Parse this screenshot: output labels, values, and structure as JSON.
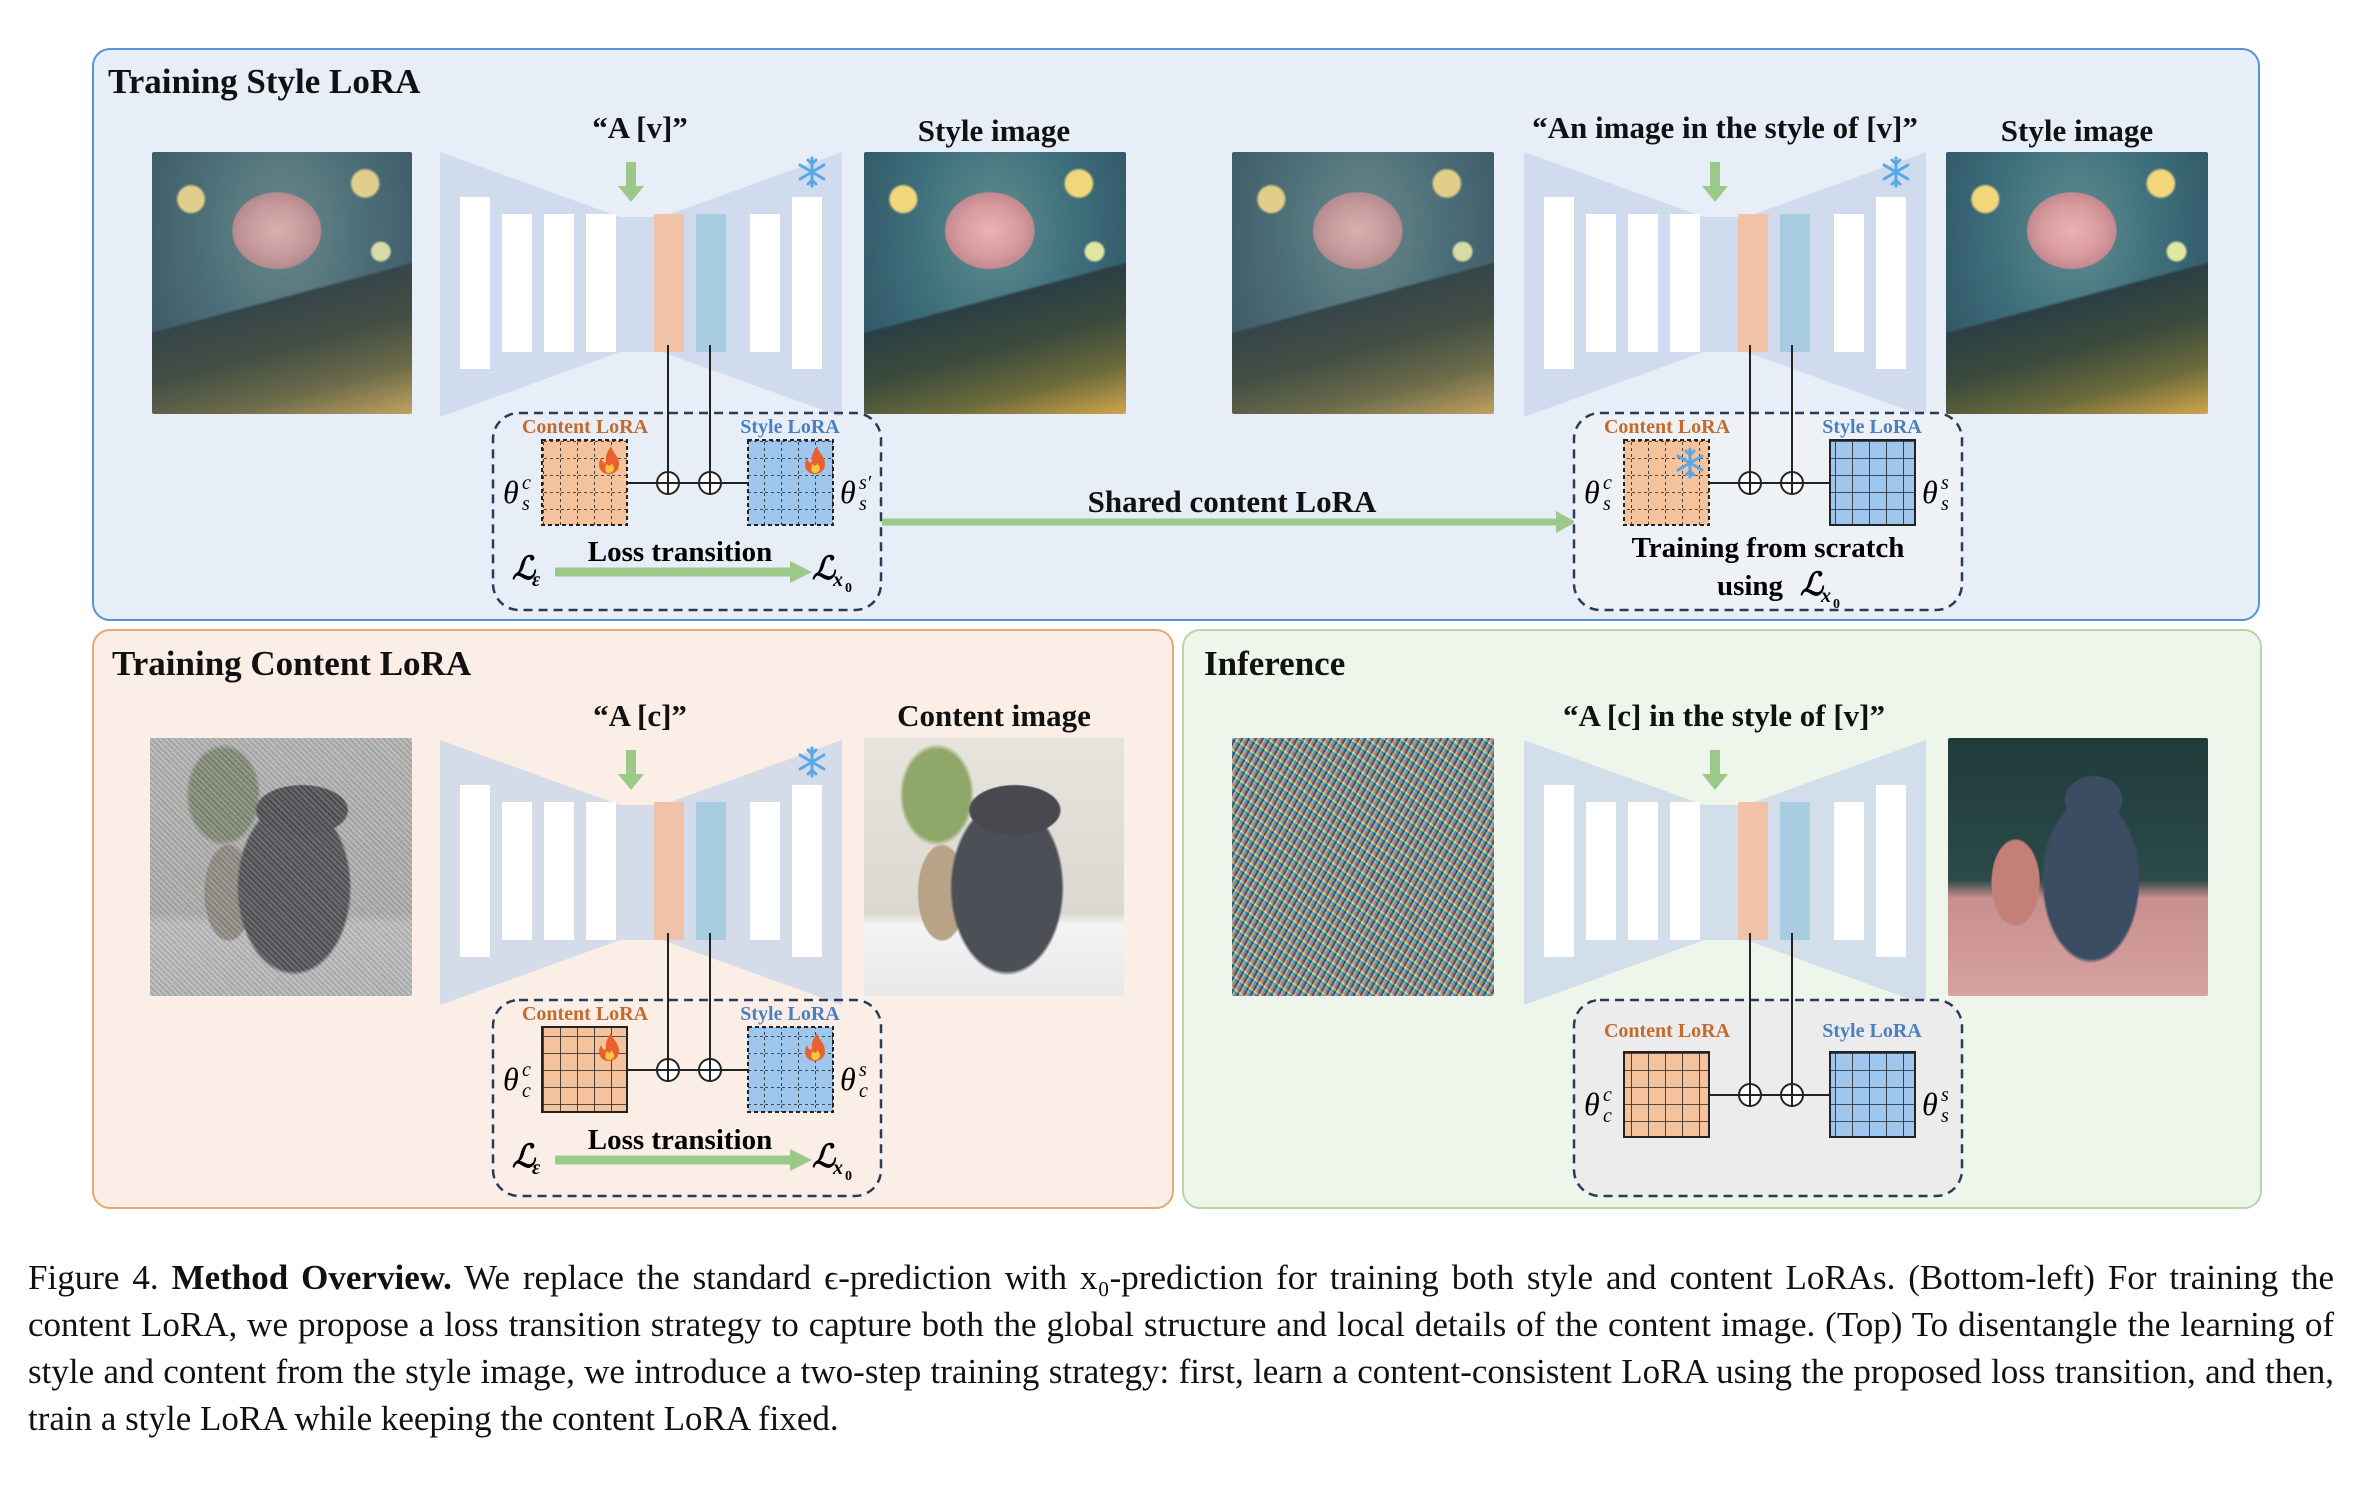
{
  "panels": {
    "style": {
      "title": "Training Style LoRA",
      "prompt_left": "“A  [v]”",
      "prompt_right": "“An image in the style of [v]”",
      "style_image_left": "Style image",
      "style_image_right": "Style image",
      "shared_arrow": "Shared content LoRA",
      "scratch_line1": "Training from scratch",
      "scratch_line2": "using"
    },
    "content": {
      "title": "Training Content LoRA",
      "prompt": "“A  [c]”",
      "content_image": "Content image"
    },
    "inference": {
      "title": "Inference",
      "prompt": "“A [c] in the style of [v]”"
    }
  },
  "lora": {
    "content_label": "Content LoRA",
    "style_label": "Style LoRA",
    "loss_transition": "Loss transition"
  },
  "math": {
    "theta": "θ",
    "c": "c",
    "s": "s",
    "s_prime": "s′",
    "L": "ℒ",
    "eps": "ε",
    "x0": "x",
    "zero": "0"
  },
  "colors": {
    "content": "#c46a2c",
    "style": "#4a7fc0",
    "arrow": "#9cc98a",
    "unet": "#c8d6ea",
    "orange_block": "#f2c2a8",
    "blue_block": "#a8cde1"
  },
  "caption": {
    "figure": "Figure 4.",
    "bold": "Method Overview.",
    "text": " We replace the standard ϵ-prediction with x₀-prediction for training both style and content LoRAs. (Bottom-left) For training the content LoRA, we propose a loss transition strategy to capture both the global structure and local details of the content image. (Top) To disentangle the learning of style and content from the style image, we introduce a two-step training strategy: first, learn a content-consistent LoRA using the proposed loss transition, and then, train a style LoRA while keeping the content LoRA fixed."
  }
}
